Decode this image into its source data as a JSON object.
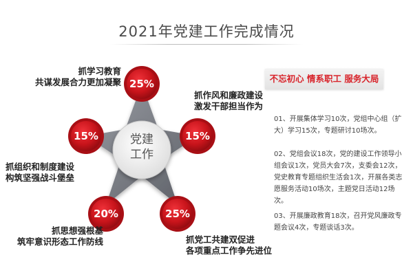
{
  "title": "2021年党建工作完成情况",
  "center": {
    "line1": "党建",
    "line2": "工作"
  },
  "nodes": [
    {
      "percent": "25%",
      "caption": [
        "抓学习教育",
        "共谋发展合力更加凝聚"
      ]
    },
    {
      "percent": "15%",
      "caption": [
        "抓作风和廉政建设",
        "激发干部担当作为"
      ]
    },
    {
      "percent": "15%",
      "caption": [
        "抓组织和制度建设",
        "构筑坚强战斗堡垒"
      ]
    },
    {
      "percent": "20%",
      "caption": [
        "抓思想强根基",
        "筑牢意识形态工作防线"
      ]
    },
    {
      "percent": "25%",
      "caption": [
        "抓党工共建双促进",
        "各项重点工作争先进位"
      ]
    }
  ],
  "banner": "不忘初心 情系职工 服务大局",
  "details": [
    "01、开展集体学习10次，党组中心组（扩大）学习15次，专题研讨10场次。",
    "02、党组会议18次，党的建设工作领导小组会议1次，党员大会7次，支委会12次，党史教育专题组织生活会1次，开展各类志愿服务活动10场次，主题党日活动12场次。",
    "03、开展廉政教育18次，召开党风廉政专题会议4次，专题谈话3次。"
  ],
  "colors": {
    "node_red": "#c8141b",
    "banner_text": "#d8232a",
    "hub": "#f1f1f1",
    "star_arm": "#7a7d85"
  }
}
